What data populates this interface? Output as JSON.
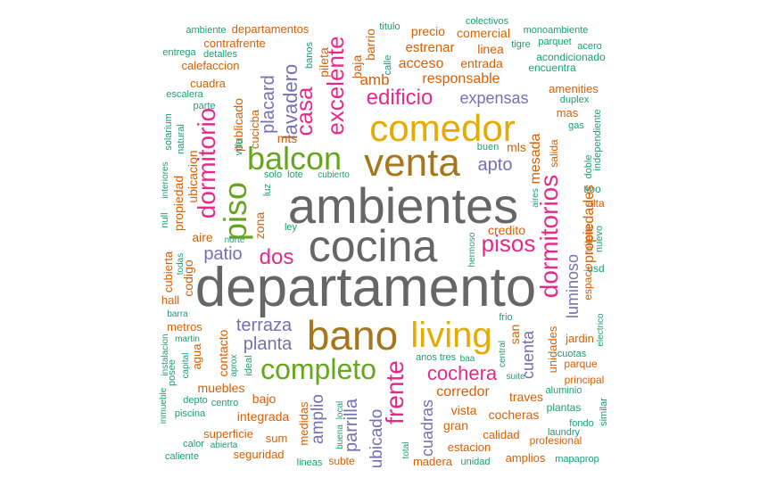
{
  "palette": {
    "gray": "#666666",
    "gold": "#E6AB02",
    "olive": "#A6761D",
    "pink": "#E7298A",
    "purple": "#7570B3",
    "green": "#66A61E",
    "orange": "#D95F02",
    "teal": "#1B9E77"
  },
  "words": [
    {
      "text": "departamento",
      "color": "gray"
    },
    {
      "text": "ambientes",
      "color": "gray"
    },
    {
      "text": "cocina",
      "color": "gray"
    },
    {
      "text": "venta",
      "color": "olive"
    },
    {
      "text": "comedor",
      "color": "gold"
    },
    {
      "text": "bano",
      "color": "olive"
    },
    {
      "text": "living",
      "color": "gold"
    },
    {
      "text": "balcon",
      "color": "green"
    },
    {
      "text": "completo",
      "color": "green"
    },
    {
      "text": "piso",
      "color": "green"
    },
    {
      "text": "dormitorio",
      "color": "pink"
    },
    {
      "text": "dormitorios",
      "color": "pink"
    },
    {
      "text": "pisos",
      "color": "pink"
    },
    {
      "text": "frente",
      "color": "pink"
    },
    {
      "text": "cochera",
      "color": "pink"
    },
    {
      "text": "excelente",
      "color": "pink"
    },
    {
      "text": "casa",
      "color": "pink"
    },
    {
      "text": "edificio",
      "color": "pink"
    },
    {
      "text": "dos",
      "color": "pink"
    },
    {
      "text": "lavadero",
      "color": "purple"
    },
    {
      "text": "placard",
      "color": "purple"
    },
    {
      "text": "apto",
      "color": "purple"
    },
    {
      "text": "expensas",
      "color": "purple"
    },
    {
      "text": "terraza",
      "color": "purple"
    },
    {
      "text": "planta",
      "color": "purple"
    },
    {
      "text": "patio",
      "color": "purple"
    },
    {
      "text": "parrilla",
      "color": "purple"
    },
    {
      "text": "amplio",
      "color": "purple"
    },
    {
      "text": "ubicado",
      "color": "purple"
    },
    {
      "text": "cuenta",
      "color": "purple"
    },
    {
      "text": "cuadras",
      "color": "purple"
    },
    {
      "text": "luminoso",
      "color": "purple"
    },
    {
      "text": "propiedades",
      "color": "orange"
    },
    {
      "text": "mesada",
      "color": "orange"
    },
    {
      "text": "amb",
      "color": "orange"
    },
    {
      "text": "responsable",
      "color": "orange"
    },
    {
      "text": "acceso",
      "color": "orange"
    },
    {
      "text": "estrenar",
      "color": "orange"
    },
    {
      "text": "entrada",
      "color": "orange"
    },
    {
      "text": "precio",
      "color": "orange"
    },
    {
      "text": "comercial",
      "color": "orange"
    },
    {
      "text": "linea",
      "color": "orange"
    },
    {
      "text": "barrio",
      "color": "orange"
    },
    {
      "text": "baja",
      "color": "orange"
    },
    {
      "text": "pileta",
      "color": "orange"
    },
    {
      "text": "departamentos",
      "color": "orange"
    },
    {
      "text": "contrafrente",
      "color": "orange"
    },
    {
      "text": "calefaccion",
      "color": "orange"
    },
    {
      "text": "cuadra",
      "color": "orange"
    },
    {
      "text": "publicado",
      "color": "orange"
    },
    {
      "text": "cucicba",
      "color": "orange"
    },
    {
      "text": "ubicacion",
      "color": "orange"
    },
    {
      "text": "propiedad",
      "color": "orange"
    },
    {
      "text": "aire",
      "color": "orange"
    },
    {
      "text": "zona",
      "color": "orange"
    },
    {
      "text": "mts",
      "color": "orange"
    },
    {
      "text": "mls",
      "color": "orange"
    },
    {
      "text": "credito",
      "color": "orange"
    },
    {
      "text": "codigo",
      "color": "orange"
    },
    {
      "text": "cubierta",
      "color": "orange"
    },
    {
      "text": "hall",
      "color": "orange"
    },
    {
      "text": "metros",
      "color": "orange"
    },
    {
      "text": "agua",
      "color": "orange"
    },
    {
      "text": "contacto",
      "color": "orange"
    },
    {
      "text": "muebles",
      "color": "orange"
    },
    {
      "text": "bajo",
      "color": "orange"
    },
    {
      "text": "integrada",
      "color": "orange"
    },
    {
      "text": "medidas",
      "color": "orange"
    },
    {
      "text": "superficie",
      "color": "orange"
    },
    {
      "text": "sum",
      "color": "orange"
    },
    {
      "text": "seguridad",
      "color": "orange"
    },
    {
      "text": "corredor",
      "color": "orange"
    },
    {
      "text": "vista",
      "color": "orange"
    },
    {
      "text": "gran",
      "color": "orange"
    },
    {
      "text": "estacion",
      "color": "orange"
    },
    {
      "text": "madera",
      "color": "orange"
    },
    {
      "text": "cocheras",
      "color": "orange"
    },
    {
      "text": "traves",
      "color": "orange"
    },
    {
      "text": "calidad",
      "color": "orange"
    },
    {
      "text": "amplios",
      "color": "orange"
    },
    {
      "text": "san",
      "color": "orange"
    },
    {
      "text": "unidades",
      "color": "orange"
    },
    {
      "text": "jardin",
      "color": "orange"
    },
    {
      "text": "parque",
      "color": "orange"
    },
    {
      "text": "mas",
      "color": "orange"
    },
    {
      "text": "amenities",
      "color": "orange"
    },
    {
      "text": "salida",
      "color": "orange"
    },
    {
      "text": "toilette",
      "color": "orange"
    },
    {
      "text": "espacio",
      "color": "orange"
    },
    {
      "text": "alta",
      "color": "orange"
    },
    {
      "text": "principal",
      "color": "orange"
    },
    {
      "text": "profesional",
      "color": "orange"
    },
    {
      "text": "subte",
      "color": "orange"
    },
    {
      "text": "ambiente",
      "color": "teal"
    },
    {
      "text": "entrega",
      "color": "teal"
    },
    {
      "text": "detalles",
      "color": "teal"
    },
    {
      "text": "escalera",
      "color": "teal"
    },
    {
      "text": "parte",
      "color": "teal"
    },
    {
      "text": "solarium",
      "color": "teal"
    },
    {
      "text": "natural",
      "color": "teal"
    },
    {
      "text": "banos",
      "color": "teal"
    },
    {
      "text": "titulo",
      "color": "teal"
    },
    {
      "text": "calle",
      "color": "teal"
    },
    {
      "text": "colectivos",
      "color": "teal"
    },
    {
      "text": "monoambiente",
      "color": "teal"
    },
    {
      "text": "tigre",
      "color": "teal"
    },
    {
      "text": "parquet",
      "color": "teal"
    },
    {
      "text": "acero",
      "color": "teal"
    },
    {
      "text": "acondicionado",
      "color": "teal"
    },
    {
      "text": "encuentra",
      "color": "teal"
    },
    {
      "text": "duplex",
      "color": "teal"
    },
    {
      "text": "gas",
      "color": "teal"
    },
    {
      "text": "independiente",
      "color": "teal"
    },
    {
      "text": "doble",
      "color": "teal"
    },
    {
      "text": "tipo",
      "color": "teal"
    },
    {
      "text": "nuevo",
      "color": "teal"
    },
    {
      "text": "usd",
      "color": "teal"
    },
    {
      "text": "buen",
      "color": "teal"
    },
    {
      "text": "villa",
      "color": "teal"
    },
    {
      "text": "solo",
      "color": "teal"
    },
    {
      "text": "lote",
      "color": "teal"
    },
    {
      "text": "cubierto",
      "color": "teal"
    },
    {
      "text": "luz",
      "color": "teal"
    },
    {
      "text": "ley",
      "color": "teal"
    },
    {
      "text": "norte",
      "color": "teal"
    },
    {
      "text": "aires",
      "color": "teal"
    },
    {
      "text": "hermoso",
      "color": "teal"
    },
    {
      "text": "interiores",
      "color": "teal"
    },
    {
      "text": "null",
      "color": "teal"
    },
    {
      "text": "todas",
      "color": "teal"
    },
    {
      "text": "barra",
      "color": "teal"
    },
    {
      "text": "instalacion",
      "color": "teal"
    },
    {
      "text": "martin",
      "color": "teal"
    },
    {
      "text": "capital",
      "color": "teal"
    },
    {
      "text": "posee",
      "color": "teal"
    },
    {
      "text": "inmueble",
      "color": "teal"
    },
    {
      "text": "depto",
      "color": "teal"
    },
    {
      "text": "centro",
      "color": "teal"
    },
    {
      "text": "piscina",
      "color": "teal"
    },
    {
      "text": "aprox",
      "color": "teal"
    },
    {
      "text": "ideal",
      "color": "teal"
    },
    {
      "text": "calor",
      "color": "teal"
    },
    {
      "text": "abierta",
      "color": "teal"
    },
    {
      "text": "caliente",
      "color": "teal"
    },
    {
      "text": "local",
      "color": "teal"
    },
    {
      "text": "buena",
      "color": "teal"
    },
    {
      "text": "total",
      "color": "teal"
    },
    {
      "text": "lineas",
      "color": "teal"
    },
    {
      "text": "anos",
      "color": "teal"
    },
    {
      "text": "tres",
      "color": "teal"
    },
    {
      "text": "baa",
      "color": "teal"
    },
    {
      "text": "central",
      "color": "teal"
    },
    {
      "text": "frio",
      "color": "teal"
    },
    {
      "text": "suite",
      "color": "teal"
    },
    {
      "text": "aluminio",
      "color": "teal"
    },
    {
      "text": "plantas",
      "color": "teal"
    },
    {
      "text": "fondo",
      "color": "teal"
    },
    {
      "text": "laundry",
      "color": "teal"
    },
    {
      "text": "electrico",
      "color": "teal"
    },
    {
      "text": "cuotas",
      "color": "teal"
    },
    {
      "text": "similar",
      "color": "teal"
    },
    {
      "text": "unidad",
      "color": "teal"
    },
    {
      "text": "mapaprop",
      "color": "teal"
    }
  ]
}
